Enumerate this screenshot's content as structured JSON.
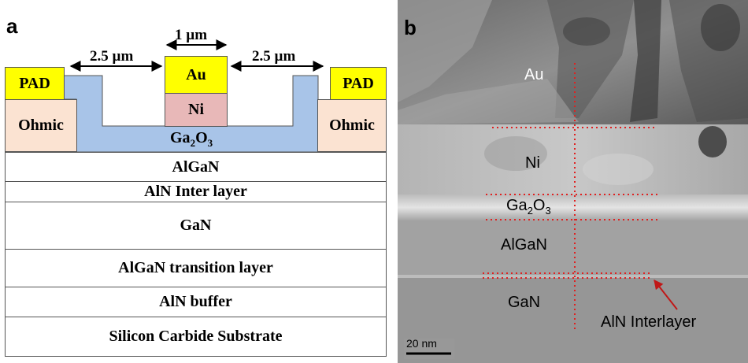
{
  "panel_a": {
    "letter": "a",
    "dims": {
      "left_gap": "2.5 µm",
      "gate_width": "1 µm",
      "right_gap": "2.5 µm"
    },
    "pad_left": "PAD",
    "pad_right": "PAD",
    "ohmic_left": "Ohmic",
    "ohmic_right": "Ohmic",
    "gate_au": "Au",
    "gate_ni": "Ni",
    "oxide_base": "Ga",
    "oxide_sub1": "2",
    "oxide_mid": "O",
    "oxide_sub2": "3",
    "layers": [
      "AlGaN",
      "AlN  Inter layer",
      "GaN",
      "AlGaN transition layer",
      "AlN buffer",
      "Silicon Carbide Substrate"
    ],
    "colors": {
      "pad": "#ffff00",
      "ni": "#e8b8b8",
      "oxide": "#a8c4e8",
      "ohmic": "#fbe3d2"
    }
  },
  "panel_b": {
    "letter": "b",
    "labels": {
      "au": "Au",
      "ni": "Ni",
      "oxide_base": "Ga",
      "oxide_sub1": "2",
      "oxide_mid": "O",
      "oxide_sub2": "3",
      "algan": "AlGaN",
      "gan": "GaN",
      "interlayer": "AlN Interlayer"
    },
    "scale_bar": "20 nm",
    "colors": {
      "guide": "#e02020",
      "arrow": "#c01818"
    }
  }
}
